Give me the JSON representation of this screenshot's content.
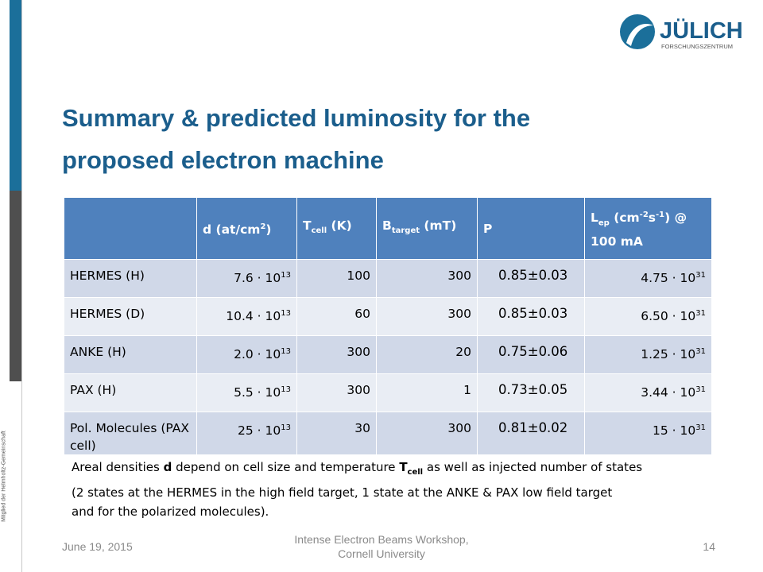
{
  "logo": {
    "name": "JÜLICH",
    "subtitle": "FORSCHUNGSZENTRUM"
  },
  "side_text": "Mitglied der Helmholtz-Gemeinschaft",
  "title": [
    "Summary & predicted luminosity for the",
    "proposed electron machine"
  ],
  "table": {
    "header": [
      [
        {
          "t": "d (at/cm"
        },
        {
          "sup": "2"
        },
        {
          "t": ")"
        }
      ],
      [
        {
          "t": "T"
        },
        {
          "sub": "cell"
        },
        {
          "t": " (K)"
        }
      ],
      [
        {
          "t": "B"
        },
        {
          "sub": "target"
        },
        {
          "t": " (mT)"
        }
      ],
      [
        {
          "t": "P"
        }
      ],
      [
        {
          "t": "L"
        },
        {
          "sub": "ep"
        },
        {
          "t": " (cm"
        },
        {
          "sup": "-2"
        },
        {
          "t": "s"
        },
        {
          "sup": "-1"
        },
        {
          "t": ") @ 100 mA"
        }
      ]
    ],
    "rows": [
      [
        [
          {
            "t": "HERMES (H)"
          }
        ],
        [
          {
            "t": "7.6 · 10"
          },
          {
            "sup": "13"
          }
        ],
        [
          {
            "t": "100"
          }
        ],
        [
          {
            "t": "300"
          }
        ],
        [
          {
            "t": "0.85±0.03"
          }
        ],
        [
          {
            "t": "4.75 · 10"
          },
          {
            "sup": "31"
          }
        ]
      ],
      [
        [
          {
            "t": "HERMES (D)"
          }
        ],
        [
          {
            "t": "10.4 · 10"
          },
          {
            "sup": "13"
          }
        ],
        [
          {
            "t": "60"
          }
        ],
        [
          {
            "t": "300"
          }
        ],
        [
          {
            "t": "0.85±0.03"
          }
        ],
        [
          {
            "t": "6.50 · 10"
          },
          {
            "sup": "31"
          }
        ]
      ],
      [
        [
          {
            "t": "ANKE (H)"
          }
        ],
        [
          {
            "t": "2.0 · 10"
          },
          {
            "sup": "13"
          }
        ],
        [
          {
            "t": "300"
          }
        ],
        [
          {
            "t": "20"
          }
        ],
        [
          {
            "t": "0.75±0.06"
          }
        ],
        [
          {
            "t": "1.25 · 10"
          },
          {
            "sup": "31"
          }
        ]
      ],
      [
        [
          {
            "t": "PAX (H)"
          }
        ],
        [
          {
            "t": "5.5 · 10"
          },
          {
            "sup": "13"
          }
        ],
        [
          {
            "t": "300"
          }
        ],
        [
          {
            "t": "1"
          }
        ],
        [
          {
            "t": "0.73±0.05"
          }
        ],
        [
          {
            "t": "3.44 · 10"
          },
          {
            "sup": "31"
          }
        ]
      ],
      [
        [
          {
            "t": "Pol. Molecules (PAX cell)"
          }
        ],
        [
          {
            "t": "25 · 10"
          },
          {
            "sup": "13"
          }
        ],
        [
          {
            "t": "30"
          }
        ],
        [
          {
            "t": "300"
          }
        ],
        [
          {
            "t": "0.81±0.02"
          }
        ],
        [
          {
            "t": "15 · 10"
          },
          {
            "sup": "31"
          }
        ]
      ]
    ]
  },
  "note": [
    [
      {
        "t": "Areal densities "
      },
      {
        "b": "d"
      },
      {
        "t": " depend on cell size and temperature "
      },
      {
        "b": "T"
      },
      {
        "sub": "cell"
      },
      {
        "t": "  as well as injected number of states"
      }
    ],
    [
      {
        "t": "(2 states at the HERMES in the high field target, 1 state at the ANKE & PAX low field target"
      }
    ],
    [
      {
        "t": "and for the polarized molecules)."
      }
    ]
  ],
  "footer": {
    "date": "June 19, 2015",
    "event": [
      "Intense Electron Beams Workshop,",
      "Cornell University"
    ],
    "page": "14"
  }
}
